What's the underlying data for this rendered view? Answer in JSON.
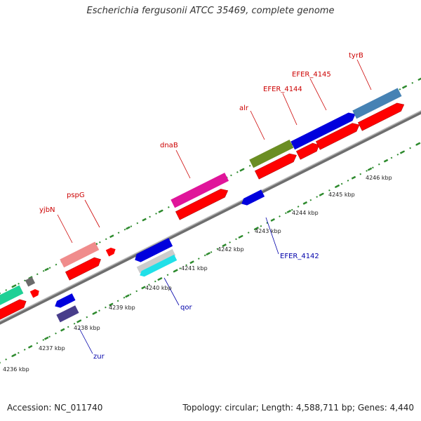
{
  "title": "Escherichia fergusonii ATCC 35469, complete genome",
  "footer": {
    "accession": "Accession: NC_011740",
    "stats": "Topology: circular; Length: 4,588,711 bp; Genes: 4,440"
  },
  "colors": {
    "forward_label": "#cc0000",
    "reverse_label": "#0000aa",
    "backbone": "#808080",
    "tick_dot": "#2d8a2d"
  },
  "ticks": [
    "4236 kbp",
    "4237 kbp",
    "4238 kbp",
    "4239 kbp",
    "4240 kbp",
    "4241 kbp",
    "4242 kbp",
    "4243 kbp",
    "4244 kbp",
    "4245 kbp",
    "4246 kbp"
  ],
  "forward_labels": [
    "yjbN",
    "pspG",
    "dnaB",
    "alr",
    "EFER_4144",
    "EFER_4145",
    "tyrB"
  ],
  "reverse_labels": [
    "zur",
    "qor",
    "EFER_4142"
  ]
}
